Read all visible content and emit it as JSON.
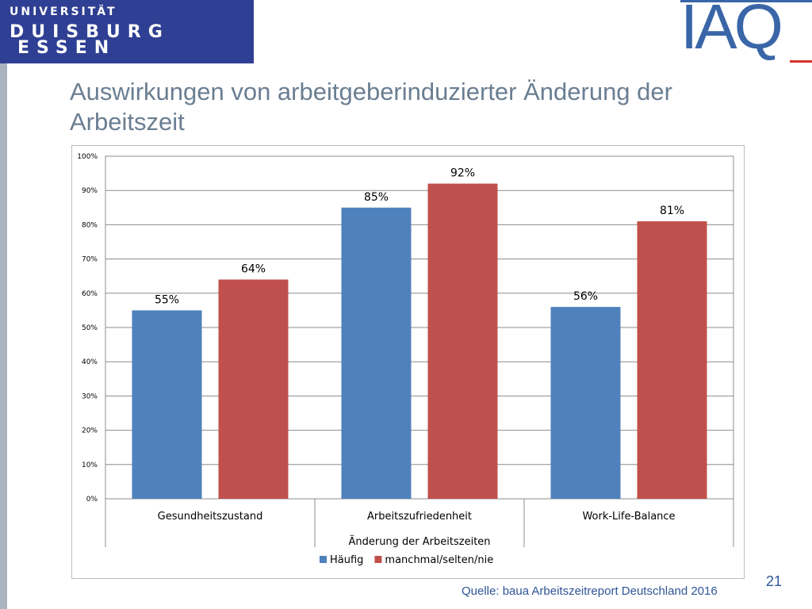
{
  "logo_university": {
    "line1": "UNIVERSITÄT",
    "line2": "DUISBURG",
    "line3": "ESSEN"
  },
  "logo_iaq": "IAQ",
  "title": "Auswirkungen von arbeitgeberinduzierter Änderung der Arbeitszeit",
  "source": "Quelle: baua Arbeitszeitreport Deutschland 2016",
  "slide_number": "21",
  "colors": {
    "series1": "#4f81bd",
    "series2": "#c0504d",
    "title": "#6a7e91",
    "source": "#2f5597"
  },
  "chart_data": {
    "type": "bar",
    "categories": [
      "Gesundheitszustand",
      "Arbeitszufriedenheit",
      "Work-Life-Balance"
    ],
    "series": [
      {
        "name": "Häufig",
        "values": [
          55,
          85,
          56
        ],
        "labels": [
          "55%",
          "85%",
          "56%"
        ],
        "color": "#4f81bd"
      },
      {
        "name": "manchmal/selten/nie",
        "values": [
          64,
          92,
          81
        ],
        "labels": [
          "64%",
          "92%",
          "81%"
        ],
        "color": "#c0504d"
      }
    ],
    "xlabel": "Änderung der Arbeitszeiten",
    "ylabel": "",
    "ylim": [
      0,
      100
    ],
    "yticks": [
      {
        "value": 0,
        "label": "0%"
      },
      {
        "value": 10,
        "label": "10%"
      },
      {
        "value": 20,
        "label": "20%"
      },
      {
        "value": 30,
        "label": "30%"
      },
      {
        "value": 40,
        "label": "40%"
      },
      {
        "value": 50,
        "label": "50%"
      },
      {
        "value": 60,
        "label": "60%"
      },
      {
        "value": 70,
        "label": "70%"
      },
      {
        "value": 80,
        "label": "80%"
      },
      {
        "value": 90,
        "label": "90%"
      },
      {
        "value": 100,
        "label": "100%"
      }
    ],
    "grid": true,
    "legend_position": "bottom"
  }
}
